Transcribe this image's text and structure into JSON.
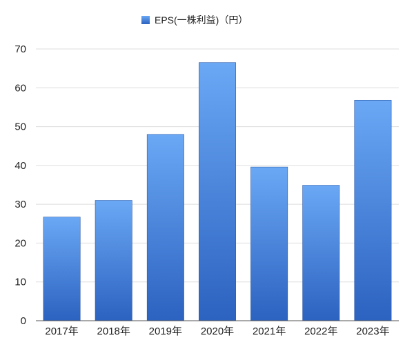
{
  "chart_data": {
    "type": "bar",
    "title": "",
    "xlabel": "",
    "ylabel": "",
    "categories": [
      "2017年",
      "2018年",
      "2019年",
      "2020年",
      "2021年",
      "2022年",
      "2023年"
    ],
    "series": [
      {
        "name": "EPS(一株利益)（円）",
        "values": [
          26.7,
          31.0,
          48.0,
          66.5,
          39.6,
          34.9,
          56.8
        ]
      }
    ],
    "ylim": [
      0,
      70
    ],
    "yticks": [
      0,
      10,
      20,
      30,
      40,
      50,
      60,
      70
    ],
    "grid": true,
    "legend_position": "top-center",
    "colors": {
      "bar_top": "#6aa8f5",
      "bar_bottom": "#2c62c0",
      "bar_stroke": "#2a5aa8",
      "grid": "#dddddd",
      "axis": "#555555"
    }
  }
}
